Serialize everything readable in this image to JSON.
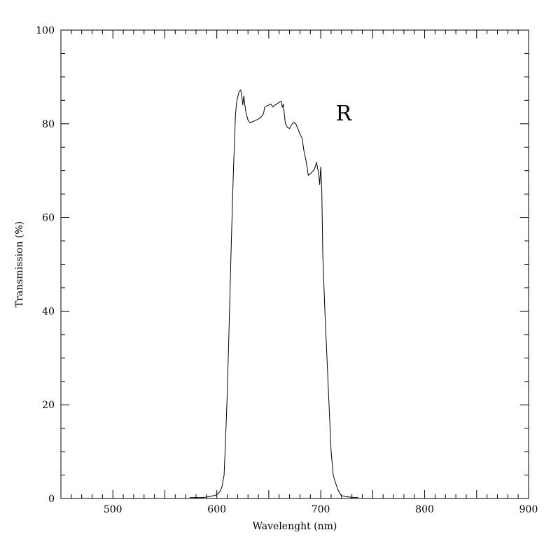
{
  "chart_data": {
    "type": "line",
    "title": "",
    "xlabel": "Wavelenght (nm)",
    "ylabel": "Transmission (%)",
    "xlim": [
      450,
      900
    ],
    "ylim": [
      0,
      100
    ],
    "x_ticks": [
      500,
      600,
      700,
      800,
      900
    ],
    "x_tick_labels": [
      "500",
      "600",
      "700",
      "800",
      "900"
    ],
    "y_ticks": [
      0,
      20,
      40,
      60,
      80,
      100
    ],
    "y_tick_labels": [
      "0",
      "20",
      "40",
      "60",
      "80",
      "100"
    ],
    "x_minor_step": 10,
    "y_minor_step": 5,
    "grid": false,
    "annotations": [
      {
        "text": "R",
        "x": 722,
        "y": 81
      }
    ],
    "series": [
      {
        "color": "#000000",
        "x": [
          574,
          580,
          585,
          590,
          595,
          600,
          603,
          605,
          607,
          608,
          610,
          612,
          614,
          616,
          618,
          619,
          621,
          622,
          623,
          624,
          625,
          626,
          627,
          628,
          630,
          632,
          634,
          636,
          638,
          640,
          642,
          644,
          645,
          646,
          648,
          650,
          652,
          654,
          656,
          658,
          660,
          662,
          663,
          664,
          665,
          666,
          668,
          670,
          672,
          674,
          676,
          678,
          680,
          682,
          684,
          686,
          688,
          690,
          692,
          694,
          696,
          697,
          698,
          699,
          700,
          701,
          702,
          703,
          704,
          706,
          708,
          710,
          712,
          714,
          716,
          718,
          720,
          724,
          728,
          732,
          736
        ],
        "y": [
          0.2,
          0.2,
          0.2,
          0.3,
          0.5,
          0.8,
          1.5,
          2.5,
          5.0,
          10.0,
          22.0,
          38.0,
          55.0,
          70.0,
          82.0,
          84.5,
          86.5,
          87.0,
          87.2,
          86.0,
          84.0,
          86.0,
          84.0,
          82.5,
          80.8,
          80.2,
          80.4,
          80.6,
          80.8,
          81.0,
          81.3,
          81.8,
          82.2,
          83.5,
          83.8,
          84.0,
          84.2,
          83.6,
          84.0,
          84.3,
          84.6,
          84.8,
          83.5,
          84.2,
          82.0,
          80.0,
          79.2,
          79.0,
          79.8,
          80.3,
          80.0,
          79.0,
          77.8,
          77.0,
          74.0,
          72.0,
          69.0,
          69.3,
          69.8,
          70.3,
          71.8,
          70.5,
          69.5,
          67.0,
          70.8,
          66.0,
          52.0,
          46.0,
          40.0,
          30.0,
          20.0,
          10.0,
          5.0,
          3.5,
          2.2,
          1.2,
          0.6,
          0.4,
          0.3,
          0.2,
          0.2
        ]
      }
    ]
  }
}
